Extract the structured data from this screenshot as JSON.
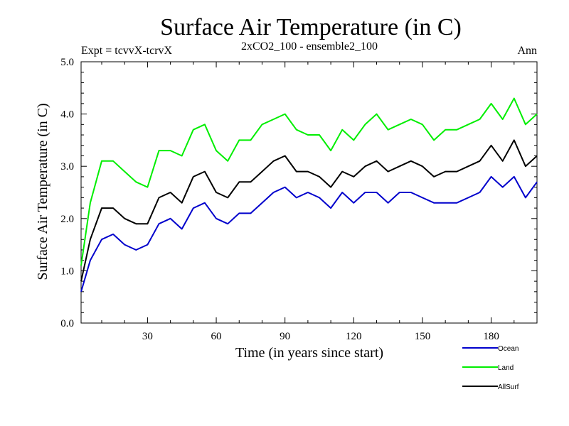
{
  "chart_data": {
    "type": "line",
    "title": "Surface Air Temperature (in C)",
    "subtitle": "2xCO2_100 - ensemble2_100",
    "experiment_label": "Expt = tcvvX-tcrvX",
    "period_label": "Ann",
    "xlabel": "Time (in years since start)",
    "ylabel": "Surface Air Temperature (in C)",
    "xlim": [
      1,
      200
    ],
    "ylim": [
      0,
      5
    ],
    "xticks": [
      30,
      60,
      90,
      120,
      150,
      180
    ],
    "yticks": [
      "0.0",
      "1.0",
      "2.0",
      "3.0",
      "4.0",
      "5.0"
    ],
    "grid": false,
    "legend_position": "bottom-right, below plot",
    "x": [
      1,
      5,
      10,
      15,
      20,
      25,
      30,
      35,
      40,
      45,
      50,
      55,
      60,
      65,
      70,
      75,
      80,
      85,
      90,
      95,
      100,
      105,
      110,
      115,
      120,
      125,
      130,
      135,
      140,
      145,
      150,
      155,
      160,
      165,
      170,
      175,
      180,
      185,
      190,
      195,
      200
    ],
    "series": [
      {
        "name": "Ocean",
        "color": "#0000cc",
        "values": [
          0.6,
          1.2,
          1.6,
          1.7,
          1.5,
          1.4,
          1.5,
          1.9,
          2.0,
          1.8,
          2.2,
          2.3,
          2.0,
          1.9,
          2.1,
          2.1,
          2.3,
          2.5,
          2.6,
          2.4,
          2.5,
          2.4,
          2.2,
          2.5,
          2.3,
          2.5,
          2.5,
          2.3,
          2.5,
          2.5,
          2.4,
          2.3,
          2.3,
          2.3,
          2.4,
          2.5,
          2.8,
          2.6,
          2.8,
          2.4,
          2.7
        ]
      },
      {
        "name": "Land",
        "color": "#00ee00",
        "values": [
          1.1,
          2.3,
          3.1,
          3.1,
          2.9,
          2.7,
          2.6,
          3.3,
          3.3,
          3.2,
          3.7,
          3.8,
          3.3,
          3.1,
          3.5,
          3.5,
          3.8,
          3.9,
          4.0,
          3.7,
          3.6,
          3.6,
          3.3,
          3.7,
          3.5,
          3.8,
          4.0,
          3.7,
          3.8,
          3.9,
          3.8,
          3.5,
          3.7,
          3.7,
          3.8,
          3.9,
          4.2,
          3.9,
          4.3,
          3.8,
          4.0
        ]
      },
      {
        "name": "AllSurf",
        "color": "#000000",
        "values": [
          0.8,
          1.6,
          2.2,
          2.2,
          2.0,
          1.9,
          1.9,
          2.4,
          2.5,
          2.3,
          2.8,
          2.9,
          2.5,
          2.4,
          2.7,
          2.7,
          2.9,
          3.1,
          3.2,
          2.9,
          2.9,
          2.8,
          2.6,
          2.9,
          2.8,
          3.0,
          3.1,
          2.9,
          3.0,
          3.1,
          3.0,
          2.8,
          2.9,
          2.9,
          3.0,
          3.1,
          3.4,
          3.1,
          3.5,
          3.0,
          3.2
        ]
      }
    ]
  }
}
